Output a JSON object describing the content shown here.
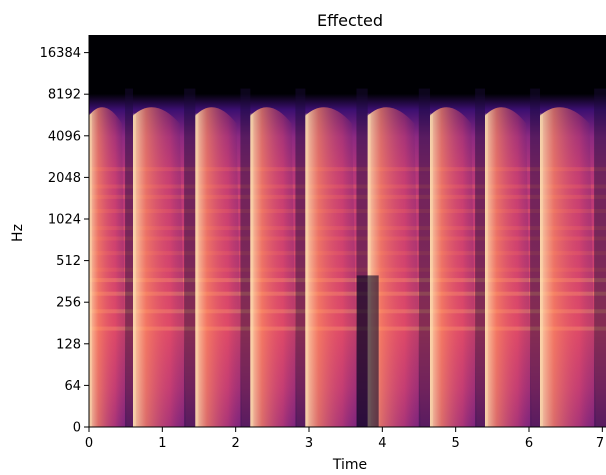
{
  "chart_data": {
    "type": "heatmap",
    "title": "Effected",
    "xlabel": "Time",
    "ylabel": "Hz",
    "x_ticks": [
      "0",
      "1",
      "2",
      "3",
      "4",
      "5",
      "6",
      "7"
    ],
    "y_ticks": [
      "0",
      "64",
      "128",
      "256",
      "512",
      "1024",
      "2048",
      "4096",
      "8192",
      "16384"
    ],
    "xlim": [
      0,
      7.05
    ],
    "ylim": [
      0,
      22050
    ],
    "y_scale": "log2 (symlog)",
    "colormap": "magma",
    "grid": false,
    "legend": "none",
    "note_onsets": [
      0.0,
      0.6,
      1.45,
      2.2,
      2.95,
      3.8,
      4.65,
      5.4,
      6.15
    ],
    "harmonic_bands_hz": [
      165,
      220,
      295,
      370,
      440,
      580,
      740,
      880,
      1170,
      1480,
      1760,
      2350
    ]
  }
}
